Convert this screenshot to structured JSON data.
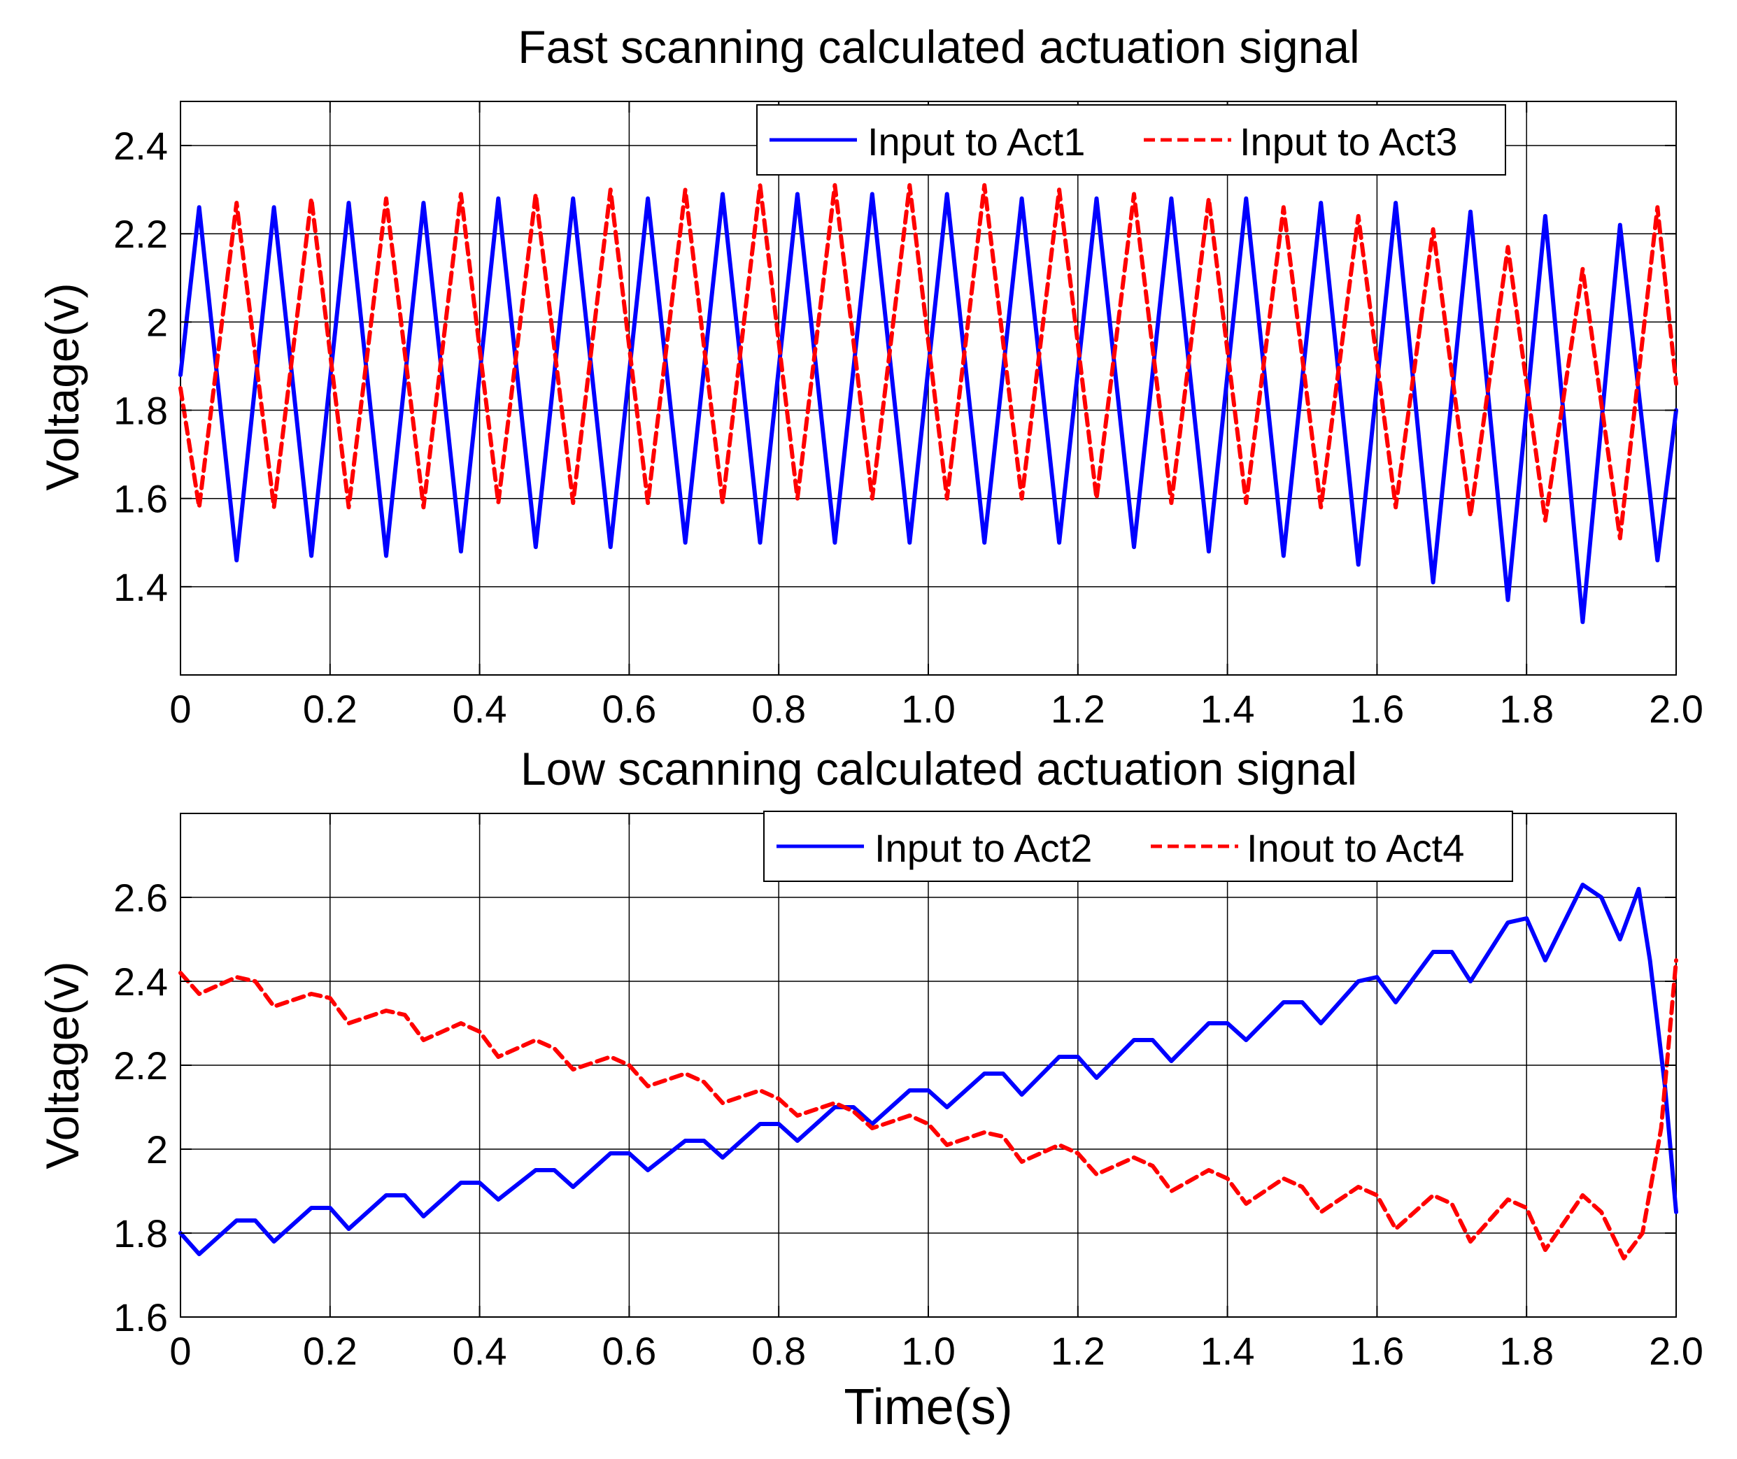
{
  "chart_data": [
    {
      "id": "top",
      "type": "line",
      "title": "Fast scanning calculated actuation signal",
      "xlabel": "",
      "ylabel": "Voltage(v)",
      "xlim": [
        0,
        2
      ],
      "ylim": [
        1.2,
        2.5
      ],
      "xticks": [
        0,
        0.2,
        0.4,
        0.6,
        0.8,
        1.0,
        1.2,
        1.4,
        1.6,
        1.8,
        2.0
      ],
      "xtick_labels": [
        "0",
        "0.2",
        "0.4",
        "0.6",
        "0.8",
        "1.0",
        "1.2",
        "1.4",
        "1.6",
        "1.8",
        "2.0"
      ],
      "yticks": [
        1.4,
        1.6,
        1.8,
        2.0,
        2.2,
        2.4
      ],
      "ytick_labels": [
        "1.4",
        "1.6",
        "1.8",
        "2",
        "2.2",
        "2.4"
      ],
      "grid": true,
      "legend_position": "top-right",
      "series": [
        {
          "name": "Input to Act1",
          "color": "#0000ff",
          "style": "solid",
          "x": [
            0,
            0.025,
            0.075,
            0.125,
            0.175,
            0.225,
            0.275,
            0.325,
            0.375,
            0.425,
            0.475,
            0.525,
            0.575,
            0.625,
            0.675,
            0.725,
            0.775,
            0.825,
            0.875,
            0.925,
            0.975,
            1.025,
            1.075,
            1.125,
            1.175,
            1.225,
            1.275,
            1.325,
            1.375,
            1.425,
            1.475,
            1.525,
            1.575,
            1.625,
            1.675,
            1.725,
            1.775,
            1.825,
            1.875,
            1.925,
            1.975,
            2.0
          ],
          "y": [
            1.88,
            2.26,
            1.46,
            2.26,
            1.47,
            2.27,
            1.47,
            2.27,
            1.48,
            2.28,
            1.49,
            2.28,
            1.49,
            2.28,
            1.5,
            2.29,
            1.5,
            2.29,
            1.5,
            2.29,
            1.5,
            2.29,
            1.5,
            2.28,
            1.5,
            2.28,
            1.49,
            2.28,
            1.48,
            2.28,
            1.47,
            2.27,
            1.45,
            2.27,
            1.41,
            2.25,
            1.37,
            2.24,
            1.32,
            2.22,
            1.46,
            1.8
          ]
        },
        {
          "name": "Input to Act3",
          "color": "#ff0000",
          "style": "dashed",
          "x": [
            0,
            0.025,
            0.075,
            0.125,
            0.175,
            0.225,
            0.275,
            0.325,
            0.375,
            0.425,
            0.475,
            0.525,
            0.575,
            0.625,
            0.675,
            0.725,
            0.775,
            0.825,
            0.875,
            0.925,
            0.975,
            1.025,
            1.075,
            1.125,
            1.175,
            1.225,
            1.275,
            1.325,
            1.375,
            1.425,
            1.475,
            1.525,
            1.575,
            1.625,
            1.675,
            1.725,
            1.775,
            1.825,
            1.875,
            1.925,
            1.975,
            2.0
          ],
          "y": [
            1.85,
            1.58,
            2.27,
            1.58,
            2.28,
            1.58,
            2.28,
            1.58,
            2.29,
            1.59,
            2.29,
            1.59,
            2.3,
            1.59,
            2.3,
            1.59,
            2.31,
            1.6,
            2.31,
            1.6,
            2.31,
            1.6,
            2.31,
            1.6,
            2.3,
            1.6,
            2.29,
            1.59,
            2.28,
            1.59,
            2.26,
            1.58,
            2.24,
            1.58,
            2.21,
            1.56,
            2.17,
            1.55,
            2.12,
            1.51,
            2.26,
            1.86
          ]
        }
      ]
    },
    {
      "id": "bottom",
      "type": "line",
      "title": "Low scanning calculated actuation signal",
      "xlabel": "Time(s)",
      "ylabel": "Voltage(v)",
      "xlim": [
        0,
        2
      ],
      "ylim": [
        1.6,
        2.8
      ],
      "xticks": [
        0,
        0.2,
        0.4,
        0.6,
        0.8,
        1.0,
        1.2,
        1.4,
        1.6,
        1.8,
        2.0
      ],
      "xtick_labels": [
        "0",
        "0.2",
        "0.4",
        "0.6",
        "0.8",
        "1.0",
        "1.2",
        "1.4",
        "1.6",
        "1.8",
        "2.0"
      ],
      "yticks": [
        1.6,
        1.8,
        2.0,
        2.2,
        2.4,
        2.6
      ],
      "ytick_labels": [
        "1.6",
        "1.8",
        "2",
        "2.2",
        "2.4",
        "2.6"
      ],
      "grid": true,
      "legend_position": "top-right",
      "series": [
        {
          "name": "Input to Act2",
          "color": "#0000ff",
          "style": "solid",
          "x": [
            0,
            0.025,
            0.075,
            0.1,
            0.125,
            0.175,
            0.2,
            0.225,
            0.275,
            0.3,
            0.325,
            0.375,
            0.4,
            0.425,
            0.475,
            0.5,
            0.525,
            0.575,
            0.6,
            0.625,
            0.675,
            0.7,
            0.725,
            0.775,
            0.8,
            0.825,
            0.875,
            0.9,
            0.925,
            0.975,
            1.0,
            1.025,
            1.075,
            1.1,
            1.125,
            1.175,
            1.2,
            1.225,
            1.275,
            1.3,
            1.325,
            1.375,
            1.4,
            1.425,
            1.475,
            1.5,
            1.525,
            1.575,
            1.6,
            1.625,
            1.675,
            1.7,
            1.725,
            1.775,
            1.8,
            1.825,
            1.875,
            1.9,
            1.925,
            1.95,
            1.965,
            1.985,
            2.0
          ],
          "y": [
            1.8,
            1.75,
            1.83,
            1.83,
            1.78,
            1.86,
            1.86,
            1.81,
            1.89,
            1.89,
            1.84,
            1.92,
            1.92,
            1.88,
            1.95,
            1.95,
            1.91,
            1.99,
            1.99,
            1.95,
            2.02,
            2.02,
            1.98,
            2.06,
            2.06,
            2.02,
            2.1,
            2.1,
            2.06,
            2.14,
            2.14,
            2.1,
            2.18,
            2.18,
            2.13,
            2.22,
            2.22,
            2.17,
            2.26,
            2.26,
            2.21,
            2.3,
            2.3,
            2.26,
            2.35,
            2.35,
            2.3,
            2.4,
            2.41,
            2.35,
            2.47,
            2.47,
            2.4,
            2.54,
            2.55,
            2.45,
            2.63,
            2.6,
            2.5,
            2.62,
            2.45,
            2.15,
            1.85
          ]
        },
        {
          "name": "Inout to Act4",
          "color": "#ff0000",
          "style": "dashed",
          "x": [
            0,
            0.025,
            0.075,
            0.1,
            0.125,
            0.175,
            0.2,
            0.225,
            0.275,
            0.3,
            0.325,
            0.375,
            0.4,
            0.425,
            0.475,
            0.5,
            0.525,
            0.575,
            0.6,
            0.625,
            0.675,
            0.7,
            0.725,
            0.775,
            0.8,
            0.825,
            0.875,
            0.9,
            0.925,
            0.975,
            1.0,
            1.025,
            1.075,
            1.1,
            1.125,
            1.175,
            1.2,
            1.225,
            1.275,
            1.3,
            1.325,
            1.375,
            1.4,
            1.425,
            1.475,
            1.5,
            1.525,
            1.575,
            1.6,
            1.625,
            1.675,
            1.7,
            1.725,
            1.775,
            1.8,
            1.825,
            1.875,
            1.9,
            1.93,
            1.955,
            1.98,
            2.0
          ],
          "y": [
            2.42,
            2.37,
            2.41,
            2.4,
            2.34,
            2.37,
            2.36,
            2.3,
            2.33,
            2.32,
            2.26,
            2.3,
            2.28,
            2.22,
            2.26,
            2.24,
            2.19,
            2.22,
            2.2,
            2.15,
            2.18,
            2.16,
            2.11,
            2.14,
            2.12,
            2.08,
            2.11,
            2.09,
            2.05,
            2.08,
            2.06,
            2.01,
            2.04,
            2.03,
            1.97,
            2.01,
            1.99,
            1.94,
            1.98,
            1.96,
            1.9,
            1.95,
            1.93,
            1.87,
            1.93,
            1.91,
            1.85,
            1.91,
            1.89,
            1.81,
            1.89,
            1.87,
            1.78,
            1.88,
            1.86,
            1.76,
            1.89,
            1.85,
            1.74,
            1.8,
            2.05,
            2.45
          ]
        }
      ]
    }
  ]
}
